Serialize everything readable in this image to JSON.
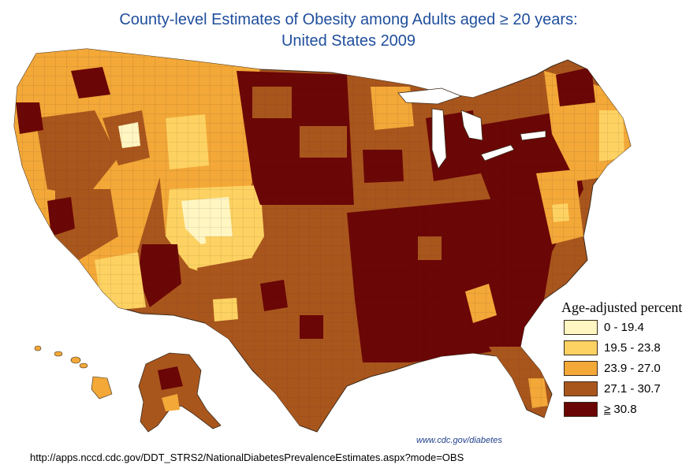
{
  "title": {
    "line1": "County-level Estimates of Obesity among Adults aged ≥ 20 years:",
    "line2": "United States 2009"
  },
  "legend": {
    "title": "Age-adjusted percent",
    "items": [
      {
        "label": "0 - 19.4",
        "color": "#fff6c2"
      },
      {
        "label": "19.5 - 23.8",
        "color": "#fdd262"
      },
      {
        "label": "23.9 - 27.0",
        "color": "#f3a838"
      },
      {
        "label": "27.1 - 30.7",
        "color": "#a9561d"
      },
      {
        "label": "30.8",
        "prefix": "≥",
        "color": "#6b0606"
      }
    ]
  },
  "credit": "www.cdc.gov/diabetes",
  "source_url": "http://apps.nccd.cdc.gov/DDT_STRS2/NationalDiabetesPrevalenceEstimates.aspx?mode=OBS",
  "colors": {
    "title": "#1f4e9c",
    "border": "#3b2a1a"
  },
  "map_regions": [
    {
      "name": "west-coast",
      "class_index": 2
    },
    {
      "name": "mountain-west",
      "class_index": 2
    },
    {
      "name": "colorado-plateau",
      "class_index": 0
    },
    {
      "name": "great-plains-north",
      "class_index": 4
    },
    {
      "name": "great-plains-south",
      "class_index": 3
    },
    {
      "name": "midwest",
      "class_index": 3
    },
    {
      "name": "south-east",
      "class_index": 4
    },
    {
      "name": "appalachia",
      "class_index": 4
    },
    {
      "name": "north-east",
      "class_index": 2
    },
    {
      "name": "texas",
      "class_index": 3
    },
    {
      "name": "florida",
      "class_index": 3
    },
    {
      "name": "alaska",
      "class_index": 3
    },
    {
      "name": "hawaii",
      "class_index": 2
    }
  ]
}
